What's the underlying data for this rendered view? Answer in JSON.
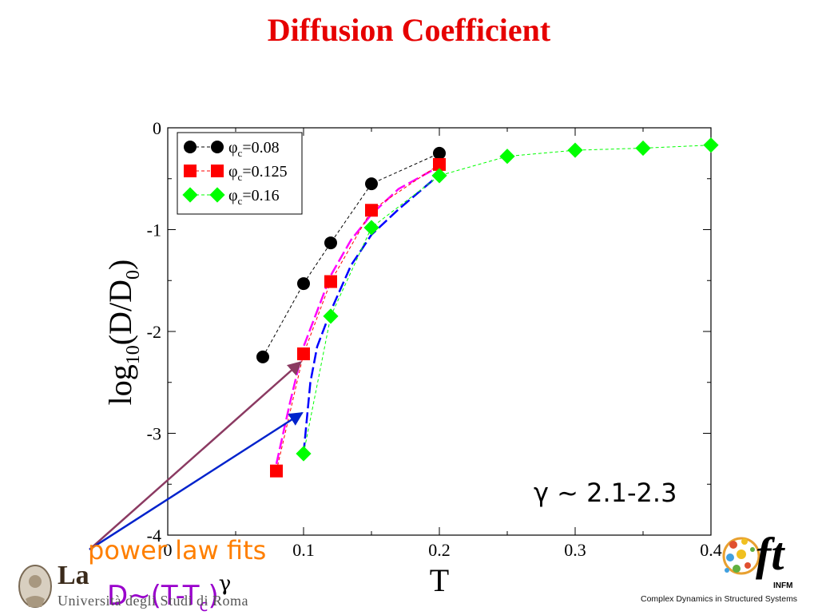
{
  "slide": {
    "title": "Diffusion Coefficient",
    "gamma_note": "γ ~ 2.1-2.3",
    "fit_label": "power law fits",
    "fit_formula": {
      "lhs": "D~(T-T",
      "sub": "c",
      "rhs": ")",
      "exponent": "γ"
    }
  },
  "logos": {
    "left": {
      "big": "La",
      "small": "Università degli Studi di Roma"
    },
    "right": {
      "mark": "ft",
      "sub": "INFM",
      "tagline": "Complex Dynamics in Structured Systems"
    }
  },
  "chart_data": {
    "type": "line",
    "xlabel": "T",
    "ylabel": "log10(D/D0)",
    "xlim": [
      0,
      0.4
    ],
    "ylim": [
      -4,
      0
    ],
    "xticks": [
      "0",
      "0.1",
      "0.2",
      "0.3",
      "0.4"
    ],
    "yticks": [
      "0",
      "-1",
      "-2",
      "-3",
      "-4"
    ],
    "grid": false,
    "legend_position": "top-left",
    "series": [
      {
        "name": "φc=0.08",
        "marker": "circle",
        "color": "#000000",
        "x": [
          0.07,
          0.1,
          0.12,
          0.15,
          0.2
        ],
        "y": [
          -2.25,
          -1.53,
          -1.13,
          -0.55,
          -0.25
        ]
      },
      {
        "name": "φc=0.125",
        "marker": "square",
        "color": "#ff0000",
        "x": [
          0.08,
          0.1,
          0.12,
          0.15,
          0.2
        ],
        "y": [
          -3.37,
          -2.22,
          -1.51,
          -0.81,
          -0.36
        ]
      },
      {
        "name": "φc=0.16",
        "marker": "diamond",
        "color": "#00ff00",
        "x": [
          0.1,
          0.12,
          0.15,
          0.2,
          0.25,
          0.3,
          0.35,
          0.4
        ],
        "y": [
          -3.2,
          -1.85,
          -0.98,
          -0.47,
          -0.28,
          -0.22,
          -0.2,
          -0.17
        ]
      }
    ],
    "fits": [
      {
        "color": "#ff00ff",
        "x": [
          0.08,
          0.09,
          0.1,
          0.11,
          0.12,
          0.135,
          0.15,
          0.17,
          0.2
        ],
        "y": [
          -3.3,
          -2.7,
          -2.15,
          -1.8,
          -1.45,
          -1.1,
          -0.85,
          -0.6,
          -0.38
        ]
      },
      {
        "color": "#0000ff",
        "x": [
          0.1,
          0.105,
          0.11,
          0.12,
          0.135,
          0.15,
          0.17,
          0.2
        ],
        "y": [
          -3.2,
          -2.5,
          -2.15,
          -1.8,
          -1.35,
          -1.05,
          -0.8,
          -0.46
        ]
      }
    ],
    "arrows": [
      {
        "color": "#8b3a62",
        "to": [
          0.098,
          -2.3
        ]
      },
      {
        "color": "#0022cc",
        "to": [
          0.099,
          -2.8
        ]
      }
    ]
  }
}
